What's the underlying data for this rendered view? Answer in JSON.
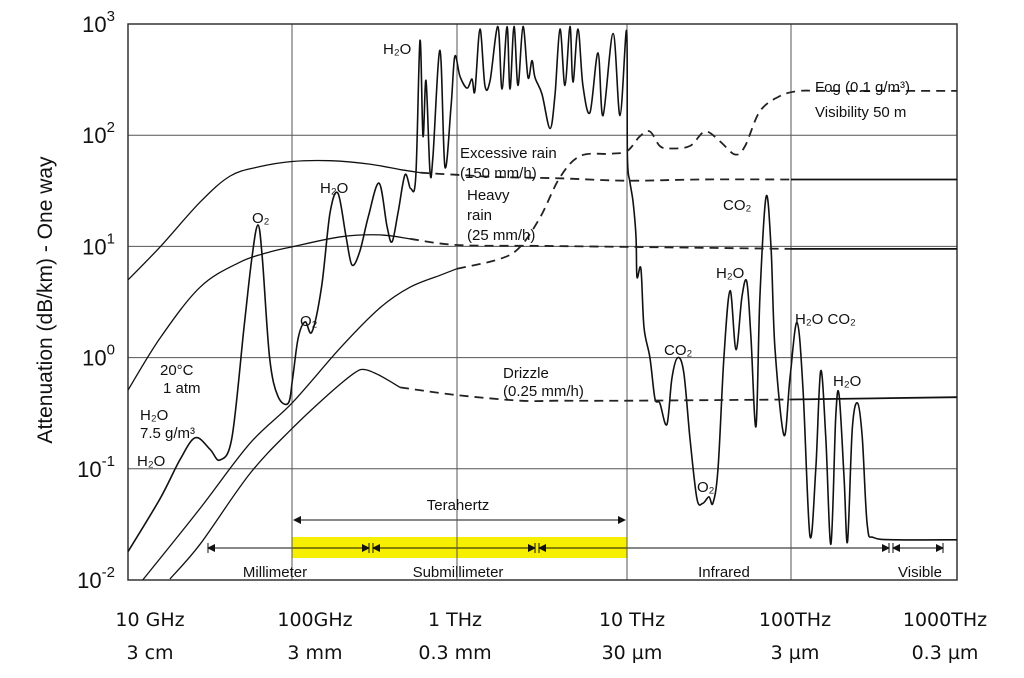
{
  "chart_data": {
    "type": "line",
    "xscale": "log",
    "yscale": "log",
    "xunit": "GHz",
    "xlim": [
      10,
      1000000
    ],
    "ylim": [
      0.01,
      1000
    ],
    "grid": true,
    "ylabel": "Attenuation (dB/km) - One way",
    "y_ticks": [
      {
        "value": 1000,
        "base": "10",
        "exp": "3"
      },
      {
        "value": 100,
        "base": "10",
        "exp": "2"
      },
      {
        "value": 10,
        "base": "10",
        "exp": "1"
      },
      {
        "value": 1,
        "base": "10",
        "exp": "0"
      },
      {
        "value": 0.1,
        "base": "10",
        "exp": "-1"
      },
      {
        "value": 0.01,
        "base": "10",
        "exp": "-2"
      }
    ],
    "x_ticks": [
      {
        "value": 10,
        "freq": "10 GHz",
        "wavelength": "3 cm"
      },
      {
        "value": 100,
        "freq": "100GHz",
        "wavelength": "3 mm"
      },
      {
        "value": 1000,
        "freq": "1 THz",
        "wavelength": "0.3 mm"
      },
      {
        "value": 10000,
        "freq": "10 THz",
        "wavelength": "30 µm"
      },
      {
        "value": 100000,
        "freq": "100THz",
        "wavelength": "3 µm"
      },
      {
        "value": 1000000,
        "freq": "1000THz",
        "wavelength": "0.3 µm"
      }
    ],
    "series": [
      {
        "name": "",
        "style": "solid",
        "weight": "clear-air",
        "points": [
          [
            10,
            0.018
          ],
          [
            15.7,
            0.054
          ],
          [
            20.7,
            0.12
          ],
          [
            25.7,
            0.19
          ],
          [
            31.6,
            0.15
          ],
          [
            36.3,
            0.12
          ],
          [
            43,
            0.19
          ],
          [
            51,
            1.87
          ],
          [
            57,
            8
          ],
          [
            62,
            15.6
          ],
          [
            66,
            7.7
          ],
          [
            73,
            1.0
          ],
          [
            82,
            0.45
          ],
          [
            95,
            0.39
          ],
          [
            101,
            0.66
          ],
          [
            109,
            1.5
          ],
          [
            120,
            2.1
          ],
          [
            132,
            1.7
          ],
          [
            151,
            4.3
          ],
          [
            170,
            20
          ],
          [
            190,
            30
          ],
          [
            213,
            12
          ],
          [
            231,
            6.8
          ],
          [
            257,
            8.9
          ],
          [
            290,
            18.5
          ],
          [
            337,
            37
          ],
          [
            377,
            15
          ],
          [
            404,
            11
          ],
          [
            439,
            20
          ],
          [
            484,
            44
          ],
          [
            525,
            33
          ],
          [
            563,
            43
          ],
          [
            597,
            710
          ],
          [
            622,
            98
          ],
          [
            649,
            310
          ],
          [
            686,
            47
          ],
          [
            715,
            65
          ],
          [
            789,
            580
          ],
          [
            845,
            52
          ],
          [
            920,
            180
          ],
          [
            970,
            510
          ],
          [
            1040,
            340
          ],
          [
            1145,
            265
          ],
          [
            1225,
            320
          ],
          [
            1275,
            250
          ],
          [
            1365,
            900
          ],
          [
            1460,
            280
          ],
          [
            1565,
            310
          ],
          [
            1740,
            950
          ],
          [
            1840,
            260
          ],
          [
            1970,
            950
          ],
          [
            2050,
            260
          ],
          [
            2165,
            950
          ],
          [
            2285,
            280
          ],
          [
            2445,
            950
          ],
          [
            2615,
            330
          ],
          [
            2760,
            470
          ],
          [
            2875,
            330
          ],
          [
            3160,
            235
          ],
          [
            3525,
            115
          ],
          [
            3770,
            230
          ],
          [
            4035,
            900
          ],
          [
            4315,
            280
          ],
          [
            4620,
            950
          ],
          [
            4810,
            300
          ],
          [
            5150,
            900
          ],
          [
            5505,
            280
          ],
          [
            6055,
            160
          ],
          [
            6750,
            550
          ],
          [
            7225,
            150
          ],
          [
            8280,
            820
          ],
          [
            9100,
            150
          ],
          [
            9950,
            870
          ],
          [
            10050,
            65
          ],
          [
            10420,
            38
          ],
          [
            10890,
            25
          ],
          [
            11350,
            12.2
          ],
          [
            11510,
            5.3
          ],
          [
            12160,
            6.3
          ],
          [
            12700,
            1.87
          ],
          [
            13800,
            1.0
          ],
          [
            14800,
            0.43
          ],
          [
            15850,
            0.39
          ],
          [
            17500,
            0.25
          ],
          [
            18800,
            0.66
          ],
          [
            20400,
            1.0
          ],
          [
            22200,
            0.73
          ],
          [
            24200,
            0.19
          ],
          [
            26700,
            0.054
          ],
          [
            29000,
            0.049
          ],
          [
            31600,
            0.056
          ],
          [
            33400,
            0.049
          ],
          [
            35900,
            0.1
          ],
          [
            39000,
            1.0
          ],
          [
            42500,
            4.0
          ],
          [
            46200,
            1.18
          ],
          [
            50200,
            3.5
          ],
          [
            53800,
            4.8
          ],
          [
            57000,
            1.5
          ],
          [
            61200,
            0.24
          ],
          [
            64600,
            3.5
          ],
          [
            70500,
            28
          ],
          [
            75500,
            9.9
          ],
          [
            79800,
            1.23
          ],
          [
            90600,
            0.2
          ],
          [
            98600,
            0.66
          ],
          [
            108700,
            2.07
          ],
          [
            118000,
            0.54
          ],
          [
            130000,
            0.025
          ],
          [
            141000,
            0.1
          ],
          [
            151000,
            0.76
          ],
          [
            162000,
            0.19
          ],
          [
            174000,
            0.021
          ],
          [
            186000,
            0.29
          ],
          [
            195000,
            0.46
          ],
          [
            209000,
            0.082
          ],
          [
            219000,
            0.022
          ],
          [
            234000,
            0.23
          ],
          [
            252000,
            0.39
          ],
          [
            269000,
            0.19
          ],
          [
            288000,
            0.031
          ],
          [
            316000,
            0.024
          ],
          [
            447000,
            0.023
          ],
          [
            1000000,
            0.023
          ]
        ]
      },
      {
        "name": "Excessive rain (150 mm/h)",
        "dashed_from": 600,
        "dashed_to": 100000,
        "points": [
          [
            10,
            5
          ],
          [
            15.7,
            9.9
          ],
          [
            27.5,
            25
          ],
          [
            42,
            43
          ],
          [
            63,
            52
          ],
          [
            100,
            58
          ],
          [
            170,
            59
          ],
          [
            295,
            55
          ],
          [
            456,
            49
          ],
          [
            600,
            46
          ],
          [
            1000,
            44
          ],
          [
            1780,
            42
          ],
          [
            4000,
            41
          ],
          [
            10000,
            39
          ],
          [
            27900,
            40
          ],
          [
            100000,
            40
          ],
          [
            1000000,
            40
          ]
        ]
      },
      {
        "name": "Heavy rain (25 mm/h)",
        "dashed_from": 519,
        "dashed_to": 100000,
        "points": [
          [
            10,
            0.51
          ],
          [
            15.7,
            1.5
          ],
          [
            27.5,
            4.3
          ],
          [
            48,
            7.2
          ],
          [
            73,
            8.9
          ],
          [
            100,
            9.9
          ],
          [
            197,
            12.2
          ],
          [
            341,
            12.7
          ],
          [
            519,
            11.7
          ],
          [
            1000,
            10.3
          ],
          [
            3100,
            10.1
          ],
          [
            10000,
            9.9
          ],
          [
            100000,
            9.5
          ],
          [
            1000000,
            9.5
          ]
        ]
      },
      {
        "name": "Drizzle (0.25 mm/h)",
        "dashed_from": 452,
        "dashed_to": 100000,
        "points": [
          [
            18,
            0.0102
          ],
          [
            27.5,
            0.021
          ],
          [
            55.5,
            0.091
          ],
          [
            100,
            0.23
          ],
          [
            170,
            0.48
          ],
          [
            240,
            0.73
          ],
          [
            277,
            0.78
          ],
          [
            341,
            0.69
          ],
          [
            452,
            0.54
          ],
          [
            1000,
            0.46
          ],
          [
            2350,
            0.41
          ],
          [
            4000,
            0.41
          ],
          [
            10000,
            0.41
          ],
          [
            100000,
            0.42
          ],
          [
            1000000,
            0.44
          ]
        ]
      },
      {
        "name": "Fog (0.1 g/m³) Visibility 50 m",
        "dashed_from": 1000,
        "dashed_to": 1000000,
        "points": [
          [
            12.3,
            0.01
          ],
          [
            27.5,
            0.044
          ],
          [
            55.5,
            0.17
          ],
          [
            100,
            0.39
          ],
          [
            197,
            1.23
          ],
          [
            341,
            2.8
          ],
          [
            519,
            4.3
          ],
          [
            789,
            5.5
          ],
          [
            1000,
            6.3
          ],
          [
            1780,
            7.7
          ],
          [
            2350,
            9.9
          ],
          [
            3100,
            18.5
          ],
          [
            4000,
            41
          ],
          [
            5300,
            65
          ],
          [
            7940,
            68
          ],
          [
            10000,
            72
          ],
          [
            12000,
            98
          ],
          [
            13800,
            108
          ],
          [
            15850,
            80
          ],
          [
            18300,
            76
          ],
          [
            24200,
            80
          ],
          [
            29900,
            108
          ],
          [
            36900,
            88
          ],
          [
            45600,
            67
          ],
          [
            52500,
            80
          ],
          [
            64600,
            164
          ],
          [
            85700,
            225
          ],
          [
            113000,
            250
          ],
          [
            172000,
            250
          ],
          [
            1000000,
            250
          ]
        ]
      }
    ],
    "annotations": [
      "H₂O",
      "Excessive rain",
      "(150 mm/h)",
      "Heavy",
      "rain",
      "(25 mm/h)",
      "H₂O",
      "O₂",
      "O₂",
      "20°C",
      "1 atm",
      "H₂O",
      "7.5 g/m³",
      "H₂O",
      "Drizzle",
      "(0.25 mm/h)",
      "Fog (0.1 g/m³)",
      "Visibility 50 m",
      "CO₂",
      "H₂O",
      "H₂O CO₂",
      "CO₂",
      "H₂O",
      "O₂"
    ],
    "bands": {
      "terahertz": {
        "label": "Terahertz",
        "from": 100,
        "to": 10000,
        "highlight_color": "#f7ef00"
      },
      "regions": [
        {
          "label": "Millimeter"
        },
        {
          "label": "Submillimeter"
        },
        {
          "label": "Infrared"
        },
        {
          "label": "Visible"
        }
      ]
    }
  }
}
